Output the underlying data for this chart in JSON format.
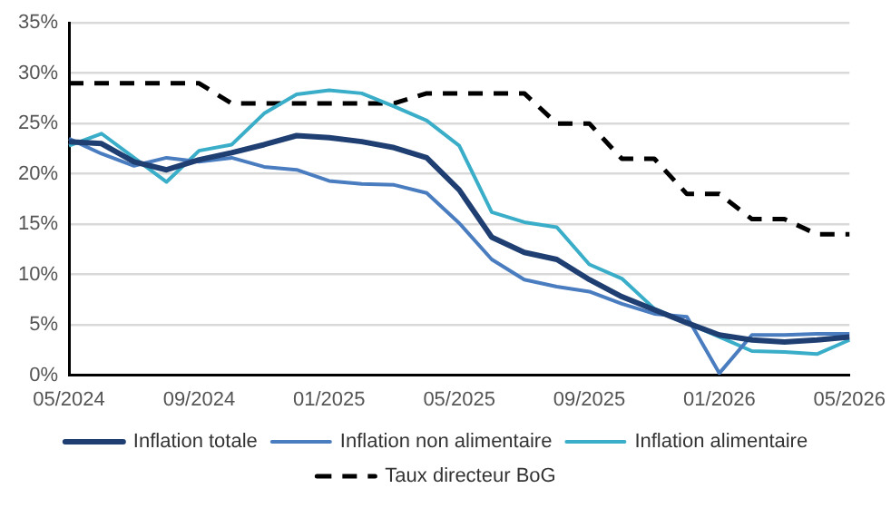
{
  "chart_data": {
    "type": "line",
    "categories": [
      "05/2024",
      null,
      null,
      null,
      "09/2024",
      null,
      null,
      null,
      "01/2025",
      null,
      null,
      null,
      "05/2025",
      null,
      null,
      null,
      "09/2025",
      null,
      null,
      null,
      "01/2026",
      null,
      null,
      null,
      "05/2026"
    ],
    "series": [
      {
        "name": "Inflation totale",
        "color": "#1f3f73",
        "line_style": "solid",
        "values": [
          23.2,
          23,
          21.2,
          20.4,
          21.4,
          22.1,
          22.9,
          23.8,
          23.6,
          23.2,
          22.6,
          21.6,
          18.4,
          13.7,
          12.2,
          11.5,
          9.5,
          7.8,
          6.5,
          5.2,
          4.0,
          3.5,
          3.3,
          3.5,
          3.8
        ]
      },
      {
        "name": "Inflation non alimentaire",
        "color": "#4a7cc0",
        "line_style": "solid",
        "values": [
          23.5,
          22,
          20.8,
          21.6,
          21.2,
          21.6,
          20.7,
          20.4,
          19.3,
          19,
          18.9,
          18.1,
          15.1,
          11.5,
          9.5,
          8.8,
          8.3,
          7.1,
          6.1,
          5.8,
          0.2,
          4.0,
          4.0,
          4.1,
          4.1
        ]
      },
      {
        "name": "Inflation alimentaire",
        "color": "#3aaec8",
        "line_style": "solid",
        "values": [
          22.8,
          24,
          21.6,
          19.2,
          22.3,
          22.9,
          26,
          27.9,
          28.3,
          28,
          26.7,
          25.3,
          22.8,
          16.2,
          15.2,
          14.7,
          11,
          9.6,
          6.6,
          5.2,
          3.8,
          2.4,
          2.3,
          2.1,
          3.5
        ]
      },
      {
        "name": "Taux directeur BoG",
        "color": "#000000",
        "line_style": "dashed",
        "values": [
          29,
          29,
          29,
          29,
          29,
          27,
          27,
          27,
          27,
          27,
          27,
          28,
          28,
          28,
          28,
          25,
          25,
          21.5,
          21.5,
          18,
          18,
          15.5,
          15.5,
          14,
          14
        ]
      }
    ],
    "ylim": [
      0,
      35
    ],
    "yticks": [
      {
        "value": 0,
        "label": "0%"
      },
      {
        "value": 5,
        "label": "5%"
      },
      {
        "value": 10,
        "label": "10%"
      },
      {
        "value": 15,
        "label": "15%"
      },
      {
        "value": 20,
        "label": "20%"
      },
      {
        "value": 25,
        "label": "25%"
      },
      {
        "value": 30,
        "label": "30%"
      },
      {
        "value": 35,
        "label": "35%"
      }
    ],
    "grid": "y",
    "legend": "bottom",
    "marker": "none"
  }
}
